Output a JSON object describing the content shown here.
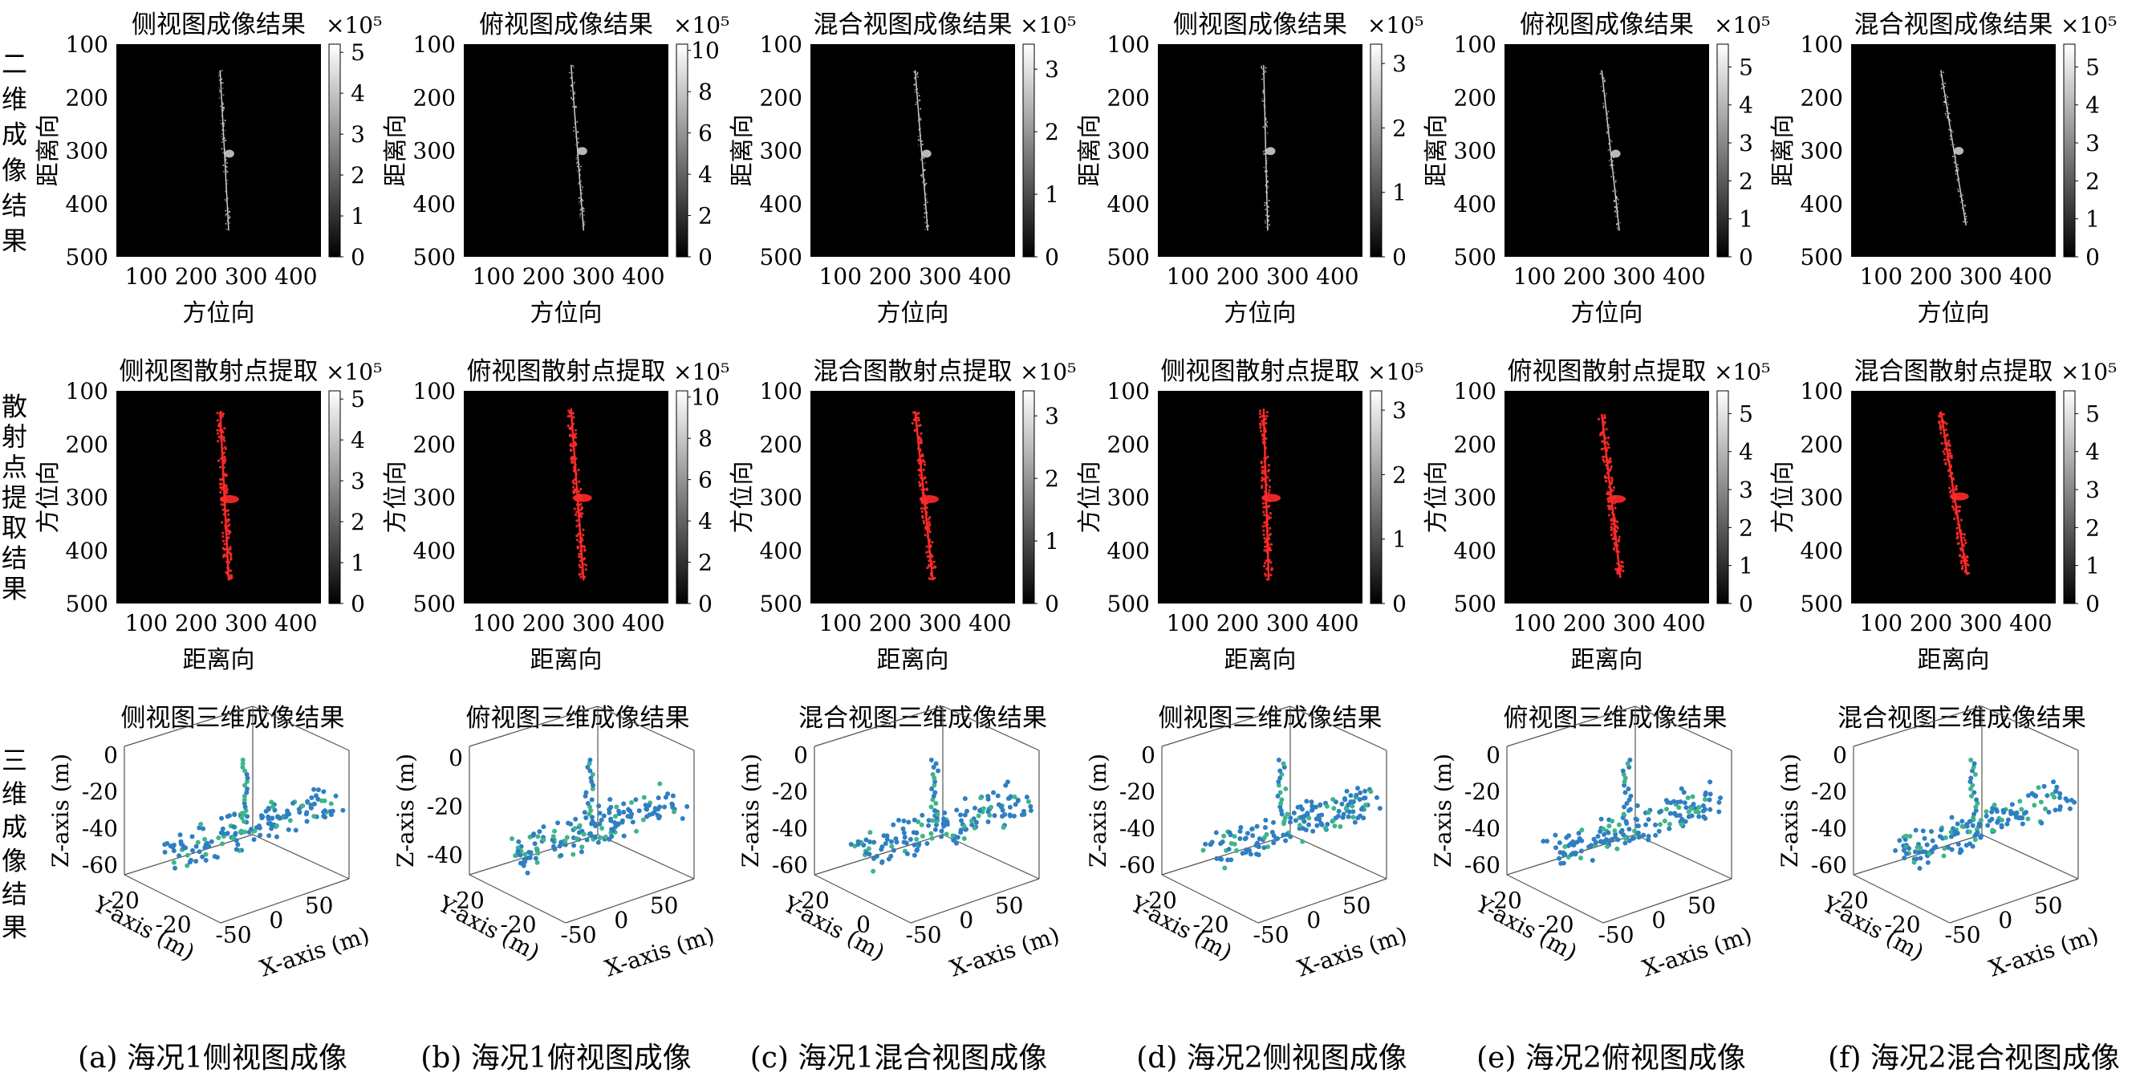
{
  "figure": {
    "row_labels": [
      "二维成像结果",
      "散射点提取结果",
      "三维成像结果"
    ],
    "captions": [
      "(a) 海况1侧视图成像",
      "(b) 海况1俯视图成像",
      "(c) 海况1混合视图成像",
      "(d) 海况2侧视图成像",
      "(e) 海况2俯视图成像",
      "(f) 海况2混合视图成像"
    ],
    "colorbar_exponent": "×10⁵",
    "colors": {
      "ship_white": "#ffffff",
      "scatter_red": "#ff2a2a",
      "points_blue": "#2f7fc1",
      "points_green": "#3fb58a"
    }
  },
  "chart_data": [
    {
      "type": "heatmap",
      "row": "imaging",
      "panel": "a",
      "title": "侧视图成像结果",
      "xlabel": "方位向",
      "ylabel": "距离向",
      "xticks": [
        100,
        200,
        300,
        400
      ],
      "yticks": [
        100,
        200,
        300,
        400,
        500
      ],
      "colorbar_ticks": [
        0,
        1,
        2,
        3,
        4,
        5
      ],
      "colorbar_max": 5.2,
      "colorbar_exponent": "×10⁵",
      "outline": [
        [
          248,
          150
        ],
        [
          265,
          450
        ]
      ]
    },
    {
      "type": "heatmap",
      "row": "imaging",
      "panel": "b",
      "title": "俯视图成像结果",
      "xlabel": "方位向",
      "ylabel": "距离向",
      "xticks": [
        100,
        200,
        300,
        400
      ],
      "yticks": [
        100,
        200,
        300,
        400,
        500
      ],
      "colorbar_ticks": [
        0,
        2,
        4,
        6,
        8,
        10
      ],
      "colorbar_max": 10.3,
      "colorbar_exponent": "×10⁵",
      "outline": [
        [
          255,
          140
        ],
        [
          280,
          450
        ]
      ]
    },
    {
      "type": "heatmap",
      "row": "imaging",
      "panel": "c",
      "title": "混合视图成像结果",
      "xlabel": "方位向",
      "ylabel": "距离向",
      "xticks": [
        100,
        200,
        300,
        400
      ],
      "yticks": [
        100,
        200,
        300,
        400,
        500
      ],
      "colorbar_ticks": [
        0,
        1,
        2,
        3
      ],
      "colorbar_max": 3.4,
      "colorbar_exponent": "×10⁵",
      "outline": [
        [
          250,
          150
        ],
        [
          275,
          450
        ]
      ]
    },
    {
      "type": "heatmap",
      "row": "imaging",
      "panel": "d",
      "title": "侧视图成像结果",
      "xlabel": "方位向",
      "ylabel": "距离向",
      "xticks": [
        100,
        200,
        300,
        400
      ],
      "yticks": [
        100,
        200,
        300,
        400,
        500
      ],
      "colorbar_ticks": [
        0,
        1,
        2,
        3
      ],
      "colorbar_max": 3.3,
      "colorbar_exponent": "×10⁵",
      "outline": [
        [
          252,
          140
        ],
        [
          260,
          450
        ]
      ]
    },
    {
      "type": "heatmap",
      "row": "imaging",
      "panel": "e",
      "title": "俯视图成像结果",
      "xlabel": "方位向",
      "ylabel": "距离向",
      "xticks": [
        100,
        200,
        300,
        400
      ],
      "yticks": [
        100,
        200,
        300,
        400,
        500
      ],
      "colorbar_ticks": [
        0,
        1,
        2,
        3,
        4,
        5
      ],
      "colorbar_max": 5.6,
      "colorbar_exponent": "×10⁵",
      "outline": [
        [
          235,
          150
        ],
        [
          270,
          450
        ]
      ]
    },
    {
      "type": "heatmap",
      "row": "imaging",
      "panel": "f",
      "title": "混合视图成像结果",
      "xlabel": "方位向",
      "ylabel": "距离向",
      "xticks": [
        100,
        200,
        300,
        400
      ],
      "yticks": [
        100,
        200,
        300,
        400,
        500
      ],
      "colorbar_ticks": [
        0,
        1,
        2,
        3,
        4,
        5
      ],
      "colorbar_max": 5.6,
      "colorbar_exponent": "×10⁵",
      "outline": [
        [
          220,
          150
        ],
        [
          270,
          440
        ]
      ]
    },
    {
      "type": "heatmap",
      "row": "scatter",
      "panel": "a",
      "title": "侧视图散射点提取",
      "xlabel": "距离向",
      "ylabel": "方位向",
      "xticks": [
        100,
        200,
        300,
        400
      ],
      "yticks": [
        100,
        200,
        300,
        400,
        500
      ],
      "colorbar_ticks": [
        0,
        1,
        2,
        3,
        4,
        5
      ],
      "colorbar_max": 5.2,
      "colorbar_exponent": "×10⁵",
      "outline": [
        [
          248,
          140
        ],
        [
          265,
          455
        ]
      ]
    },
    {
      "type": "heatmap",
      "row": "scatter",
      "panel": "b",
      "title": "俯视图散射点提取",
      "xlabel": "距离向",
      "ylabel": "方位向",
      "xticks": [
        100,
        200,
        300,
        400
      ],
      "yticks": [
        100,
        200,
        300,
        400,
        500
      ],
      "colorbar_ticks": [
        0,
        2,
        4,
        6,
        8,
        10
      ],
      "colorbar_max": 10.3,
      "colorbar_exponent": "×10⁵",
      "outline": [
        [
          255,
          135
        ],
        [
          280,
          455
        ]
      ]
    },
    {
      "type": "heatmap",
      "row": "scatter",
      "panel": "c",
      "title": "混合图散射点提取",
      "xlabel": "距离向",
      "ylabel": "方位向",
      "xticks": [
        100,
        200,
        300,
        400
      ],
      "yticks": [
        100,
        200,
        300,
        400,
        500
      ],
      "colorbar_ticks": [
        0,
        1,
        2,
        3
      ],
      "colorbar_max": 3.4,
      "colorbar_exponent": "×10⁵",
      "outline": [
        [
          250,
          140
        ],
        [
          285,
          455
        ]
      ]
    },
    {
      "type": "heatmap",
      "row": "scatter",
      "panel": "d",
      "title": "侧视图散射点提取",
      "xlabel": "距离向",
      "ylabel": "方位向",
      "xticks": [
        100,
        200,
        300,
        400
      ],
      "yticks": [
        100,
        200,
        300,
        400,
        500
      ],
      "colorbar_ticks": [
        0,
        1,
        2,
        3
      ],
      "colorbar_max": 3.3,
      "colorbar_exponent": "×10⁵",
      "outline": [
        [
          252,
          135
        ],
        [
          262,
          455
        ]
      ]
    },
    {
      "type": "heatmap",
      "row": "scatter",
      "panel": "e",
      "title": "俯视图散射点提取",
      "xlabel": "距离向",
      "ylabel": "方位向",
      "xticks": [
        100,
        200,
        300,
        400
      ],
      "yticks": [
        100,
        200,
        300,
        400,
        500
      ],
      "colorbar_ticks": [
        0,
        1,
        2,
        3,
        4,
        5
      ],
      "colorbar_max": 5.6,
      "colorbar_exponent": "×10⁵",
      "outline": [
        [
          235,
          145
        ],
        [
          272,
          450
        ]
      ]
    },
    {
      "type": "heatmap",
      "row": "scatter",
      "panel": "f",
      "title": "混合图散射点提取",
      "xlabel": "距离向",
      "ylabel": "方位向",
      "xticks": [
        100,
        200,
        300,
        400
      ],
      "yticks": [
        100,
        200,
        300,
        400,
        500
      ],
      "colorbar_ticks": [
        0,
        1,
        2,
        3,
        4,
        5
      ],
      "colorbar_max": 5.6,
      "colorbar_exponent": "×10⁵",
      "outline": [
        [
          220,
          140
        ],
        [
          272,
          445
        ]
      ]
    },
    {
      "type": "scatter",
      "row": "3d",
      "panel": "a",
      "title": "侧视图三维成像结果",
      "xlabel": "X-axis (m)",
      "ylabel": "Y-axis (m)",
      "zlabel": "Z-axis (m)",
      "zticks": [
        0,
        -20,
        -40,
        -60
      ],
      "xticks": [
        -50,
        0,
        50
      ],
      "yticks": [
        20,
        -20
      ],
      "zlim": [
        -65,
        5
      ]
    },
    {
      "type": "scatter",
      "row": "3d",
      "panel": "b",
      "title": "俯视图三维成像结果",
      "xlabel": "X-axis (m)",
      "ylabel": "Y-axis (m)",
      "zlabel": "Z-axis (m)",
      "zticks": [
        0,
        -20,
        -40
      ],
      "xticks": [
        -50,
        0,
        50
      ],
      "yticks": [
        20,
        -20
      ],
      "zlim": [
        -48,
        5
      ]
    },
    {
      "type": "scatter",
      "row": "3d",
      "panel": "c",
      "title": "混合视图三维成像结果",
      "xlabel": "X-axis (m)",
      "ylabel": "Y-axis (m)",
      "zlabel": "Z-axis (m)",
      "zticks": [
        0,
        -20,
        -40,
        -60
      ],
      "xticks": [
        -50,
        0,
        50
      ],
      "yticks": [
        20,
        0
      ],
      "zlim": [
        -65,
        5
      ]
    },
    {
      "type": "scatter",
      "row": "3d",
      "panel": "d",
      "title": "侧视图三维成像结果",
      "xlabel": "X-axis (m)",
      "ylabel": "Y-axis (m)",
      "zlabel": "Z-axis (m)",
      "zticks": [
        0,
        -20,
        -40,
        -60
      ],
      "xticks": [
        -50,
        0,
        50
      ],
      "yticks": [
        20,
        -20
      ],
      "zlim": [
        -65,
        5
      ]
    },
    {
      "type": "scatter",
      "row": "3d",
      "panel": "e",
      "title": "俯视图三维成像结果",
      "xlabel": "X-axis (m)",
      "ylabel": "Y-axis (m)",
      "zlabel": "Z-axis (m)",
      "zticks": [
        0,
        -20,
        -40,
        -60
      ],
      "xticks": [
        -50,
        0,
        50
      ],
      "yticks": [
        20,
        -20
      ],
      "zlim": [
        -65,
        5
      ]
    },
    {
      "type": "scatter",
      "row": "3d",
      "panel": "f",
      "title": "混合视图三维成像结果",
      "xlabel": "X-axis (m)",
      "ylabel": "Y-axis (m)",
      "zlabel": "Z-axis (m)",
      "zticks": [
        0,
        -20,
        -40,
        -60
      ],
      "xticks": [
        -50,
        0,
        50
      ],
      "yticks": [
        20,
        -20
      ],
      "zlim": [
        -65,
        5
      ]
    }
  ]
}
